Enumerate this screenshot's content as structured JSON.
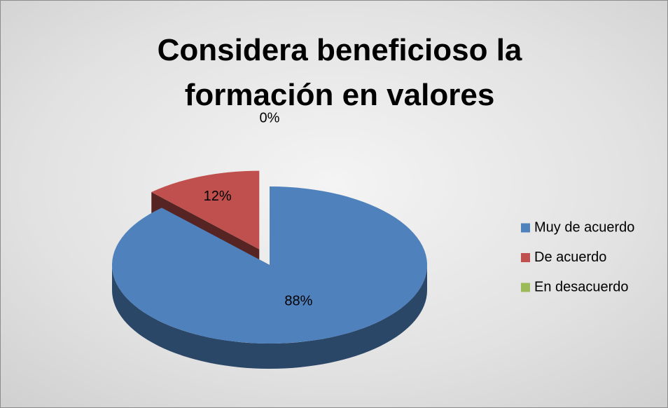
{
  "chart_data": {
    "type": "pie",
    "title": "Considera beneficioso la formación en valores",
    "categories": [
      "Muy de acuerdo",
      "De acuerdo",
      "En desacuerdo"
    ],
    "values": [
      88,
      12,
      0
    ],
    "value_labels": [
      "88%",
      "12%",
      "0%"
    ],
    "colors": [
      "#4f81bd",
      "#c0504d",
      "#9bbb59"
    ],
    "legend": "right"
  }
}
